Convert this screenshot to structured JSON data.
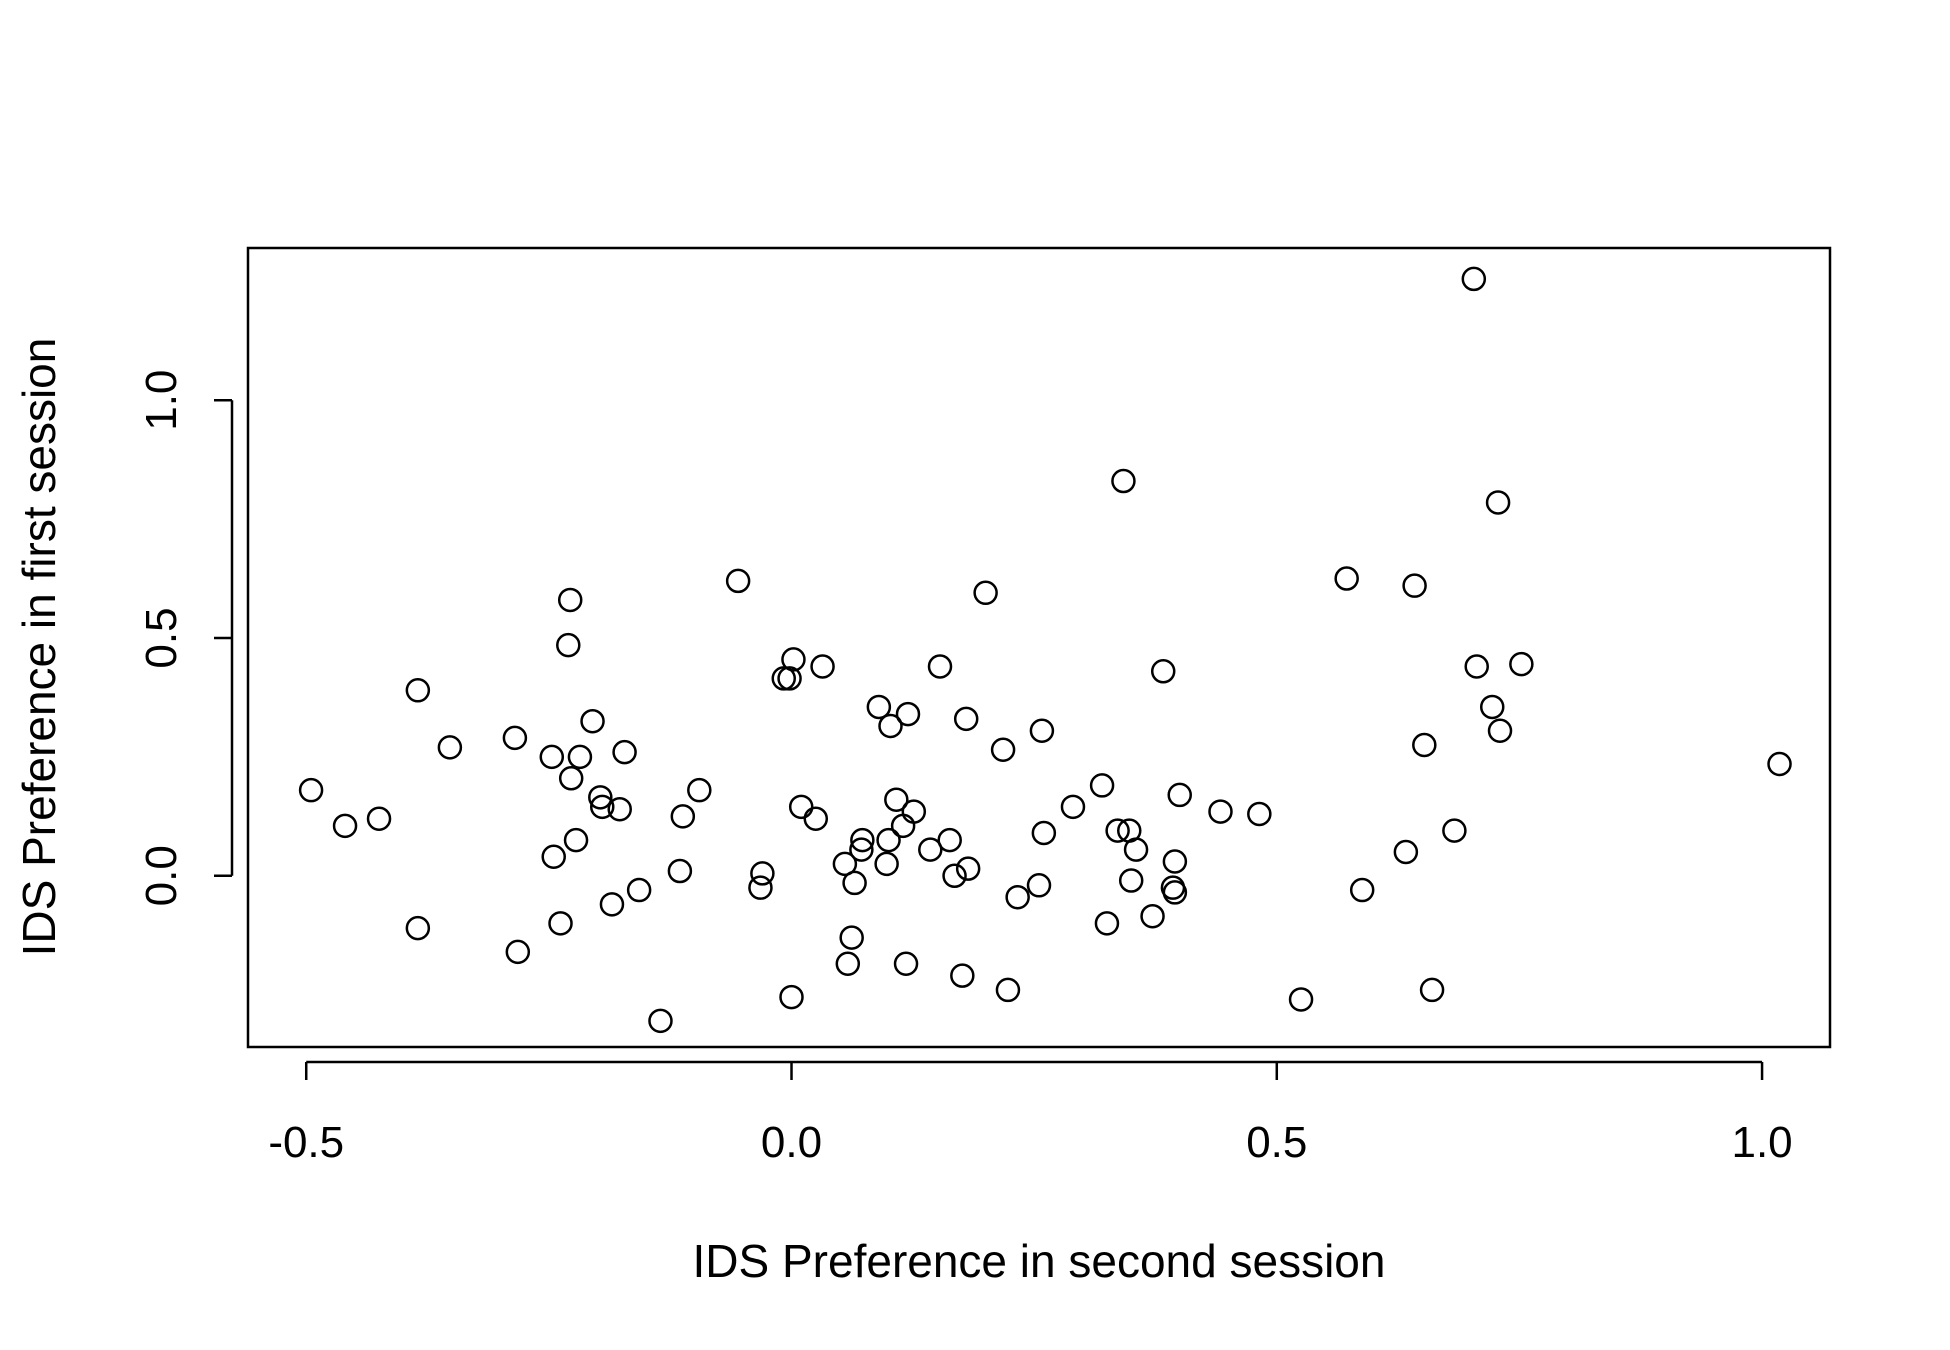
{
  "chart_data": {
    "type": "scatter",
    "title": "",
    "xlabel": "IDS Preference in second session",
    "ylabel": "IDS Preference in first session",
    "xlim": [
      -0.56,
      1.07
    ],
    "ylim": [
      -0.36,
      1.32
    ],
    "xticks": [
      -0.5,
      0.0,
      0.5,
      1.0
    ],
    "xtick_labels": [
      "-0.5",
      "0.0",
      "0.5",
      "1.0"
    ],
    "yticks": [
      0.0,
      0.5,
      1.0
    ],
    "ytick_labels": [
      "0.0",
      "0.5",
      "1.0"
    ],
    "grid": false,
    "legend": "none",
    "marker": "open-circle",
    "marker_color": "#000000",
    "series": [
      {
        "points": [
          [
            -0.495,
            0.18
          ],
          [
            -0.46,
            0.105
          ],
          [
            -0.425,
            0.12
          ],
          [
            -0.385,
            0.39
          ],
          [
            -0.385,
            -0.11
          ],
          [
            -0.352,
            0.27
          ],
          [
            -0.285,
            0.29
          ],
          [
            -0.282,
            -0.16
          ],
          [
            -0.247,
            0.25
          ],
          [
            -0.245,
            0.04
          ],
          [
            -0.238,
            -0.1
          ],
          [
            -0.23,
            0.485
          ],
          [
            -0.228,
            0.58
          ],
          [
            -0.227,
            0.205
          ],
          [
            -0.222,
            0.075
          ],
          [
            -0.218,
            0.25
          ],
          [
            -0.205,
            0.325
          ],
          [
            -0.197,
            0.165
          ],
          [
            -0.195,
            0.145
          ],
          [
            -0.185,
            -0.06
          ],
          [
            -0.177,
            0.14
          ],
          [
            -0.172,
            0.26
          ],
          [
            -0.157,
            -0.03
          ],
          [
            -0.135,
            -0.305
          ],
          [
            -0.115,
            0.01
          ],
          [
            -0.112,
            0.125
          ],
          [
            -0.095,
            0.18
          ],
          [
            -0.055,
            0.62
          ],
          [
            -0.03,
            0.005
          ],
          [
            -0.032,
            -0.025
          ],
          [
            -0.008,
            0.415
          ],
          [
            -0.002,
            0.415
          ],
          [
            0.002,
            0.455
          ],
          [
            0.0,
            -0.255
          ],
          [
            0.01,
            0.145
          ],
          [
            0.025,
            0.12
          ],
          [
            0.032,
            0.44
          ],
          [
            0.055,
            0.025
          ],
          [
            0.058,
            -0.185
          ],
          [
            0.062,
            -0.13
          ],
          [
            0.065,
            -0.015
          ],
          [
            0.072,
            0.055
          ],
          [
            0.073,
            0.075
          ],
          [
            0.09,
            0.355
          ],
          [
            0.098,
            0.025
          ],
          [
            0.1,
            0.075
          ],
          [
            0.102,
            0.315
          ],
          [
            0.108,
            0.16
          ],
          [
            0.115,
            0.105
          ],
          [
            0.118,
            -0.185
          ],
          [
            0.12,
            0.34
          ],
          [
            0.126,
            0.135
          ],
          [
            0.143,
            0.055
          ],
          [
            0.153,
            0.44
          ],
          [
            0.163,
            0.075
          ],
          [
            0.168,
            0.0
          ],
          [
            0.176,
            -0.21
          ],
          [
            0.18,
            0.33
          ],
          [
            0.182,
            0.015
          ],
          [
            0.2,
            0.595
          ],
          [
            0.218,
            0.265
          ],
          [
            0.223,
            -0.24
          ],
          [
            0.233,
            -0.045
          ],
          [
            0.255,
            -0.02
          ],
          [
            0.258,
            0.305
          ],
          [
            0.26,
            0.09
          ],
          [
            0.29,
            0.145
          ],
          [
            0.32,
            0.19
          ],
          [
            0.325,
            -0.1
          ],
          [
            0.336,
            0.095
          ],
          [
            0.342,
            0.83
          ],
          [
            0.348,
            0.095
          ],
          [
            0.35,
            -0.01
          ],
          [
            0.355,
            0.055
          ],
          [
            0.372,
            -0.085
          ],
          [
            0.383,
            0.43
          ],
          [
            0.393,
            -0.025
          ],
          [
            0.395,
            0.03
          ],
          [
            0.395,
            -0.035
          ],
          [
            0.4,
            0.17
          ],
          [
            0.442,
            0.135
          ],
          [
            0.482,
            0.13
          ],
          [
            0.525,
            -0.26
          ],
          [
            0.572,
            0.625
          ],
          [
            0.588,
            -0.03
          ],
          [
            0.633,
            0.05
          ],
          [
            0.642,
            0.61
          ],
          [
            0.652,
            0.275
          ],
          [
            0.66,
            -0.24
          ],
          [
            0.683,
            0.095
          ],
          [
            0.703,
            1.255
          ],
          [
            0.706,
            0.44
          ],
          [
            0.722,
            0.355
          ],
          [
            0.728,
            0.785
          ],
          [
            0.73,
            0.305
          ],
          [
            0.752,
            0.445
          ],
          [
            1.018,
            0.235
          ]
        ]
      }
    ]
  }
}
